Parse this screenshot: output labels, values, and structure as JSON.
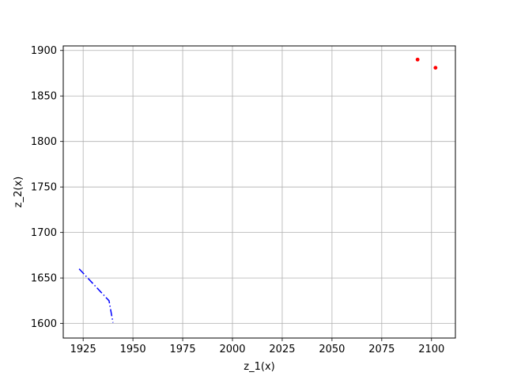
{
  "chart_data": {
    "type": "scatter",
    "title": "",
    "xlabel": "z_1(x)",
    "ylabel": "z_2(x)",
    "xlim": [
      1915,
      2112
    ],
    "ylim": [
      1584,
      1905
    ],
    "x_ticks": [
      1925,
      1950,
      1975,
      2000,
      2025,
      2050,
      2075,
      2100
    ],
    "y_ticks": [
      1600,
      1650,
      1700,
      1750,
      1800,
      1850,
      1900
    ],
    "grid": true,
    "legend": "none",
    "series": [
      {
        "kind": "line",
        "style": "dash-dot",
        "color": "#0000ff",
        "points": [
          {
            "x": 1923,
            "y": 1660
          },
          {
            "x": 1938,
            "y": 1625
          },
          {
            "x": 1940,
            "y": 1601
          }
        ]
      },
      {
        "kind": "points",
        "style": "dot",
        "color": "#ff0000",
        "points": [
          {
            "x": 2093,
            "y": 1890
          },
          {
            "x": 2102,
            "y": 1881
          }
        ]
      }
    ]
  }
}
